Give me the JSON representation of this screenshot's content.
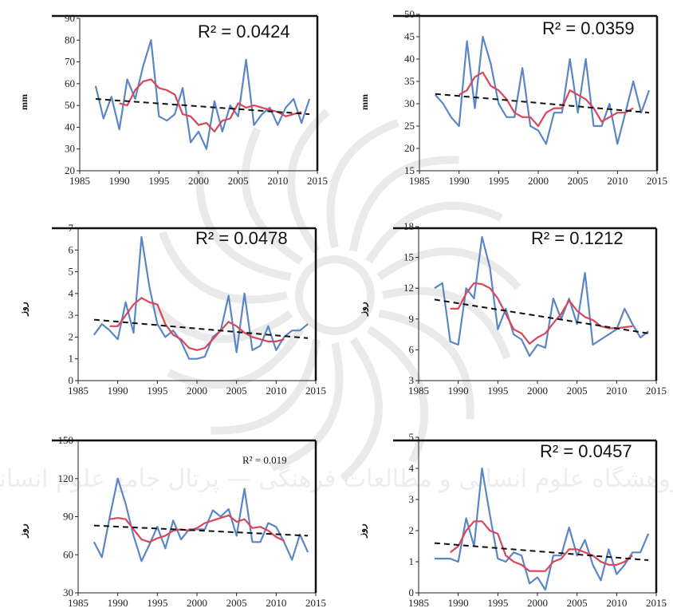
{
  "colors": {
    "observed": "#5b86c6",
    "moving_average": "#d9455a",
    "trend": "#111111",
    "frame": "#111111",
    "watermark": "#d9d9d9"
  },
  "watermark_text": "پژوهشگاه علوم انسانی و مطالعات فرهنگی — پرتال جامع علوم انسانی",
  "chart_data": [
    {
      "type": "line",
      "r2_label": "R² = 0.0424",
      "r2_size": "large",
      "ylabel": "mm",
      "xlim": [
        1985,
        2015
      ],
      "xticks": [
        1985,
        1990,
        1995,
        2000,
        2005,
        2010,
        2015
      ],
      "ylim": [
        20,
        90
      ],
      "yticks": [
        20,
        30,
        40,
        50,
        60,
        70,
        80,
        90
      ],
      "x": [
        1987,
        1988,
        1989,
        1990,
        1991,
        1992,
        1993,
        1994,
        1995,
        1996,
        1997,
        1998,
        1999,
        2000,
        2001,
        2002,
        2003,
        2004,
        2005,
        2006,
        2007,
        2008,
        2009,
        2010,
        2011,
        2012,
        2013,
        2014
      ],
      "series": [
        {
          "values": [
            59,
            44,
            54,
            39,
            62,
            53,
            68,
            80,
            45,
            43,
            46,
            58,
            33,
            38,
            30,
            52,
            38,
            50,
            45,
            71,
            41,
            46,
            49,
            41,
            49,
            53,
            42,
            53
          ]
        },
        {
          "values": [
            null,
            null,
            null,
            51,
            50,
            57,
            61,
            62,
            58,
            57,
            55,
            46,
            45,
            41,
            42,
            38,
            43,
            44,
            51,
            49,
            50,
            49,
            48,
            47,
            45,
            46,
            47,
            null
          ]
        },
        {
          "x": [
            1987,
            2014
          ],
          "values": [
            53,
            46
          ]
        }
      ]
    },
    {
      "type": "line",
      "r2_label": "R² = 0.0359",
      "r2_size": "large",
      "ylabel": "mm",
      "xlim": [
        1985,
        2015
      ],
      "xticks": [
        1985,
        1990,
        1995,
        2000,
        2005,
        2010,
        2015
      ],
      "ylim": [
        15,
        50
      ],
      "yticks": [
        15,
        20,
        25,
        30,
        35,
        40,
        45,
        50
      ],
      "x": [
        1987,
        1988,
        1989,
        1990,
        1991,
        1992,
        1993,
        1994,
        1995,
        1996,
        1997,
        1998,
        1999,
        2000,
        2001,
        2002,
        2003,
        2004,
        2005,
        2006,
        2007,
        2008,
        2009,
        2010,
        2011,
        2012,
        2013,
        2014
      ],
      "series": [
        {
          "values": [
            32,
            30,
            27,
            25,
            44,
            29,
            45,
            39,
            30,
            27,
            27,
            38,
            25,
            24,
            21,
            28,
            28,
            40,
            28,
            40,
            25,
            25,
            30,
            21,
            28,
            35,
            28,
            33
          ]
        },
        {
          "values": [
            null,
            null,
            null,
            32,
            33,
            36,
            37,
            34,
            33,
            31,
            28,
            27,
            27,
            25,
            28,
            29,
            29,
            33,
            32,
            31,
            29,
            26,
            27,
            28,
            28,
            29,
            null,
            null
          ]
        },
        {
          "x": [
            1987,
            2014
          ],
          "values": [
            32.2,
            28
          ]
        }
      ]
    },
    {
      "type": "line",
      "r2_label": "R² = 0.0478",
      "r2_size": "large",
      "ylabel": "روز",
      "xlim": [
        1985,
        2015
      ],
      "xticks": [
        1985,
        1990,
        1995,
        2000,
        2005,
        2010,
        2015
      ],
      "ylim": [
        0,
        7
      ],
      "yticks": [
        0,
        1,
        2,
        3,
        4,
        5,
        6,
        7
      ],
      "x": [
        1987,
        1988,
        1989,
        1990,
        1991,
        1992,
        1993,
        1994,
        1995,
        1996,
        1997,
        1998,
        1999,
        2000,
        2001,
        2002,
        2003,
        2004,
        2005,
        2006,
        2007,
        2008,
        2009,
        2010,
        2011,
        2012,
        2013,
        2014
      ],
      "series": [
        {
          "values": [
            2.1,
            2.6,
            2.3,
            1.9,
            3.6,
            2.2,
            6.6,
            4.3,
            2.6,
            2.0,
            2.3,
            1.8,
            1.0,
            1.0,
            1.1,
            2.0,
            2.3,
            3.9,
            1.3,
            4.0,
            1.4,
            1.6,
            2.5,
            1.4,
            2.0,
            2.3,
            2.3,
            2.6
          ]
        },
        {
          "values": [
            null,
            null,
            2.5,
            2.5,
            3.0,
            3.5,
            3.8,
            3.6,
            3.5,
            2.6,
            2.1,
            1.9,
            1.5,
            1.4,
            1.5,
            1.9,
            2.3,
            2.7,
            2.5,
            2.2,
            2.0,
            1.9,
            1.8,
            1.8,
            1.9,
            null,
            null,
            null
          ]
        },
        {
          "x": [
            1987,
            2014
          ],
          "values": [
            2.8,
            1.95
          ]
        }
      ]
    },
    {
      "type": "line",
      "r2_label": "R² = 0.1212",
      "r2_size": "large",
      "ylabel": "روز",
      "xlim": [
        1985,
        2015
      ],
      "xticks": [
        1985,
        1990,
        1995,
        2000,
        2005,
        2010,
        2015
      ],
      "ylim": [
        3,
        18
      ],
      "yticks": [
        3,
        6,
        9,
        12,
        15,
        18
      ],
      "x": [
        1987,
        1988,
        1989,
        1990,
        1991,
        1992,
        1993,
        1994,
        1995,
        1996,
        1997,
        1998,
        1999,
        2000,
        2001,
        2002,
        2003,
        2004,
        2005,
        2006,
        2007,
        2008,
        2009,
        2010,
        2011,
        2012,
        2013,
        2014
      ],
      "series": [
        {
          "values": [
            12,
            12.5,
            6.8,
            6.5,
            12,
            11,
            17,
            14,
            8,
            10,
            7.5,
            7,
            5.4,
            6.5,
            6.2,
            11,
            9,
            11,
            8.5,
            13.5,
            6.5,
            7,
            7.5,
            8,
            10,
            8.5,
            7.2,
            7.8
          ]
        },
        {
          "values": [
            null,
            null,
            10,
            10,
            11.5,
            12.5,
            12.4,
            12,
            11,
            9.5,
            8,
            7.6,
            6.6,
            7.2,
            7.6,
            8.6,
            9.5,
            10.8,
            9.8,
            9.2,
            8.9,
            8.3,
            8.1,
            8.1,
            8.2,
            8.3,
            null,
            null
          ]
        },
        {
          "x": [
            1987,
            2014
          ],
          "values": [
            10.9,
            7.6
          ]
        }
      ]
    },
    {
      "type": "line",
      "r2_label": "R² = 0.019",
      "r2_size": "small",
      "ylabel": "روز",
      "xlim": [
        1985,
        2015
      ],
      "xticks": [
        1985,
        1990,
        1995,
        2000,
        2005,
        2010,
        2015
      ],
      "ylim": [
        30,
        150
      ],
      "yticks": [
        30,
        60,
        90,
        120,
        150
      ],
      "x": [
        1987,
        1988,
        1989,
        1990,
        1991,
        1992,
        1993,
        1994,
        1995,
        1996,
        1997,
        1998,
        1999,
        2000,
        2001,
        2002,
        2003,
        2004,
        2005,
        2006,
        2007,
        2008,
        2009,
        2010,
        2011,
        2012,
        2013,
        2014
      ],
      "series": [
        {
          "values": [
            70,
            58,
            90,
            120,
            100,
            75,
            55,
            68,
            82,
            65,
            87,
            72,
            80,
            80,
            80,
            95,
            90,
            96,
            75,
            112,
            70,
            70,
            85,
            82,
            70,
            56,
            76,
            62
          ]
        },
        {
          "values": [
            null,
            null,
            88,
            89,
            88,
            80,
            72,
            70,
            73,
            75,
            79,
            80,
            79,
            81,
            85,
            87,
            89,
            91,
            86,
            88,
            81,
            82,
            79,
            74,
            71,
            null,
            null,
            null
          ]
        },
        {
          "x": [
            1987,
            2014
          ],
          "values": [
            83,
            75
          ]
        }
      ]
    },
    {
      "type": "line",
      "r2_label": "R² = 0.0457",
      "r2_size": "large",
      "ylabel": "روز",
      "xlim": [
        1985,
        2015
      ],
      "xticks": [
        1985,
        1990,
        1995,
        2000,
        2005,
        2010,
        2015
      ],
      "ylim": [
        0,
        5
      ],
      "yticks": [
        0,
        1,
        2,
        3,
        4,
        5
      ],
      "x": [
        1987,
        1988,
        1989,
        1990,
        1991,
        1992,
        1993,
        1994,
        1995,
        1996,
        1997,
        1998,
        1999,
        2000,
        2001,
        2002,
        2003,
        2004,
        2005,
        2006,
        2007,
        2008,
        2009,
        2010,
        2011,
        2012,
        2013,
        2014
      ],
      "series": [
        {
          "values": [
            1.1,
            1.1,
            1.1,
            1.0,
            2.4,
            1.5,
            4.0,
            2.5,
            1.1,
            1.0,
            1.3,
            1.2,
            0.3,
            0.5,
            0.1,
            1.2,
            1.2,
            2.1,
            1.2,
            1.7,
            0.9,
            0.4,
            1.4,
            0.6,
            0.9,
            1.3,
            1.3,
            1.9
          ]
        },
        {
          "values": [
            null,
            null,
            1.3,
            1.5,
            2.0,
            2.3,
            2.3,
            2.0,
            1.9,
            1.2,
            1.0,
            0.9,
            0.7,
            0.7,
            0.7,
            1.0,
            1.1,
            1.4,
            1.4,
            1.3,
            1.2,
            1.0,
            0.9,
            0.9,
            1.0,
            1.2,
            null,
            null
          ]
        },
        {
          "x": [
            1987,
            2014
          ],
          "values": [
            1.6,
            1.05
          ]
        }
      ]
    }
  ]
}
